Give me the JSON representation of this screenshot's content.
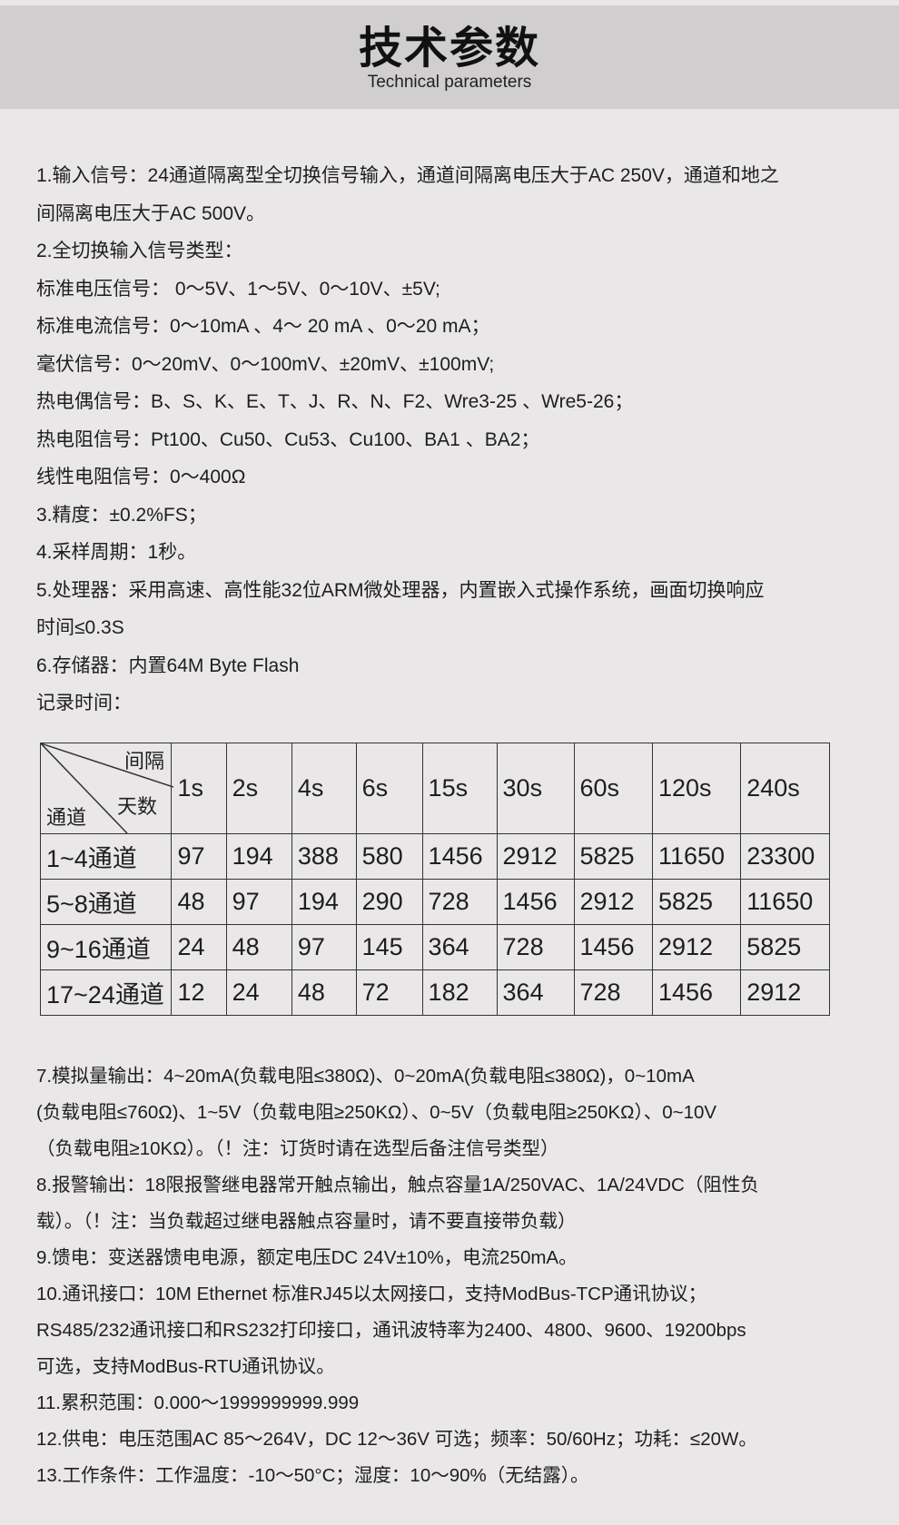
{
  "header": {
    "title": "技术参数",
    "subtitle": "Technical parameters"
  },
  "specs_top": [
    "1.输入信号：24通道隔离型全切换信号输入，通道间隔离电压大于AC 250V，通道和地之",
    "间隔离电压大于AC 500V。",
    "2.全切换输入信号类型：",
    "标准电压信号： 0～5V、1～5V、0～10V、±5V;",
    "标准电流信号：0～10mA 、4～ 20 mA 、0～20 mA；",
    "毫伏信号：0～20mV、0～100mV、±20mV、±100mV;",
    "热电偶信号：B、S、K、E、T、J、R、N、F2、Wre3-25 、Wre5-26；",
    "热电阻信号：Pt100、Cu50、Cu53、Cu100、BA1 、BA2；",
    "线性电阻信号：0～400Ω",
    "3.精度：±0.2%FS；",
    "4.采样周期：1秒。",
    "5.处理器：采用高速、高性能32位ARM微处理器，内置嵌入式操作系统，画面切换响应",
    "时间≤0.3S",
    "6.存储器：内置64M Byte Flash",
    "记录时间："
  ],
  "table": {
    "corner": {
      "interval": "间隔",
      "days": "天数",
      "channel": "通道"
    },
    "columns": [
      "1s",
      "2s",
      "4s",
      "6s",
      "15s",
      "30s",
      "60s",
      "120s",
      "240s"
    ],
    "rows": [
      {
        "label": "1~4通道",
        "values": [
          "97",
          "194",
          "388",
          "580",
          "1456",
          "2912",
          "5825",
          "11650",
          "23300"
        ]
      },
      {
        "label": "5~8通道",
        "values": [
          "48",
          "97",
          "194",
          "290",
          "728",
          "1456",
          "2912",
          "5825",
          "11650"
        ]
      },
      {
        "label": "9~16通道",
        "values": [
          "24",
          "48",
          "97",
          "145",
          "364",
          "728",
          "1456",
          "2912",
          "5825"
        ]
      },
      {
        "label": "17~24通道",
        "values": [
          "12",
          "24",
          "48",
          "72",
          "182",
          "364",
          "728",
          "1456",
          "2912"
        ]
      }
    ]
  },
  "specs_bottom": [
    "7.模拟量输出：4~20mA(负载电阻≤380Ω)、0~20mA(负载电阻≤380Ω)，0~10mA",
    "(负载电阻≤760Ω)、1~5V（负载电阻≥250KΩ）、0~5V（负载电阻≥250KΩ）、0~10V",
    "（负载电阻≥10KΩ）。（！注：订货时请在选型后备注信号类型）",
    "8.报警输出：18限报警继电器常开触点输出，触点容量1A/250VAC、1A/24VDC（阻性负",
    "载）。（！注：当负载超过继电器触点容量时，请不要直接带负载）",
    "9.馈电：变送器馈电电源，额定电压DC 24V±10%，电流250mA。",
    "10.通讯接口：10M  Ethernet 标准RJ45以太网接口，支持ModBus-TCP通讯协议；",
    "RS485/232通讯接口和RS232打印接口，通讯波特率为2400、4800、9600、19200bps",
    "可选，支持ModBus-RTU通讯协议。",
    "11.累积范围：0.000～1999999999.999",
    "12.供电：电压范围AC 85～264V，DC 12～36V 可选；频率：50/60Hz；功耗：≤20W。",
    "13.工作条件：工作温度：-10～50°C；湿度：10～90%（无结露）。"
  ]
}
